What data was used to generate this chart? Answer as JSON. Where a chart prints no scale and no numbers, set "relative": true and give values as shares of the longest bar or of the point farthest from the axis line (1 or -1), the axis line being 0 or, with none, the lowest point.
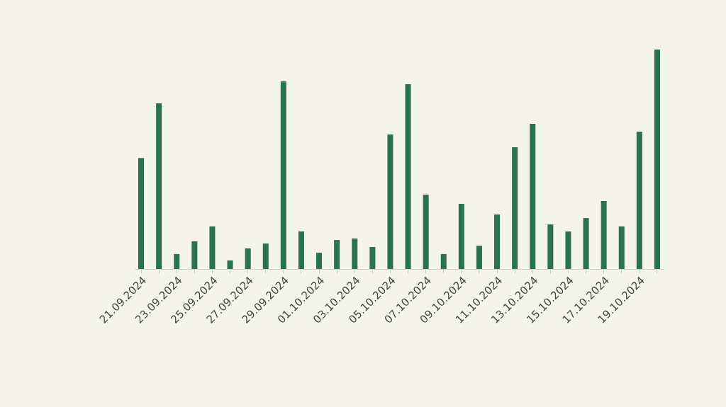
{
  "chart_data": {
    "type": "bar",
    "relative": true,
    "color": "#2a7250",
    "categories": [
      "21.09.2024",
      null,
      "23.09.2024",
      null,
      "25.09.2024",
      null,
      "27.09.2024",
      null,
      "29.09.2024",
      null,
      "01.10.2024",
      null,
      "03.10.2024",
      null,
      "05.10.2024",
      null,
      "07.10.2024",
      null,
      "09.10.2024",
      null,
      "11.10.2024",
      null,
      "13.10.2024",
      null,
      "15.10.2024",
      null,
      "17.10.2024",
      null,
      "19.10.2024",
      null
    ],
    "values": [
      0.506,
      0.755,
      0.068,
      0.126,
      0.194,
      0.039,
      0.094,
      0.116,
      0.855,
      0.171,
      0.074,
      0.132,
      0.139,
      0.1,
      0.613,
      0.842,
      0.339,
      0.068,
      0.297,
      0.106,
      0.248,
      0.555,
      0.661,
      0.203,
      0.171,
      0.232,
      0.31,
      0.194,
      0.626,
      1
    ]
  }
}
